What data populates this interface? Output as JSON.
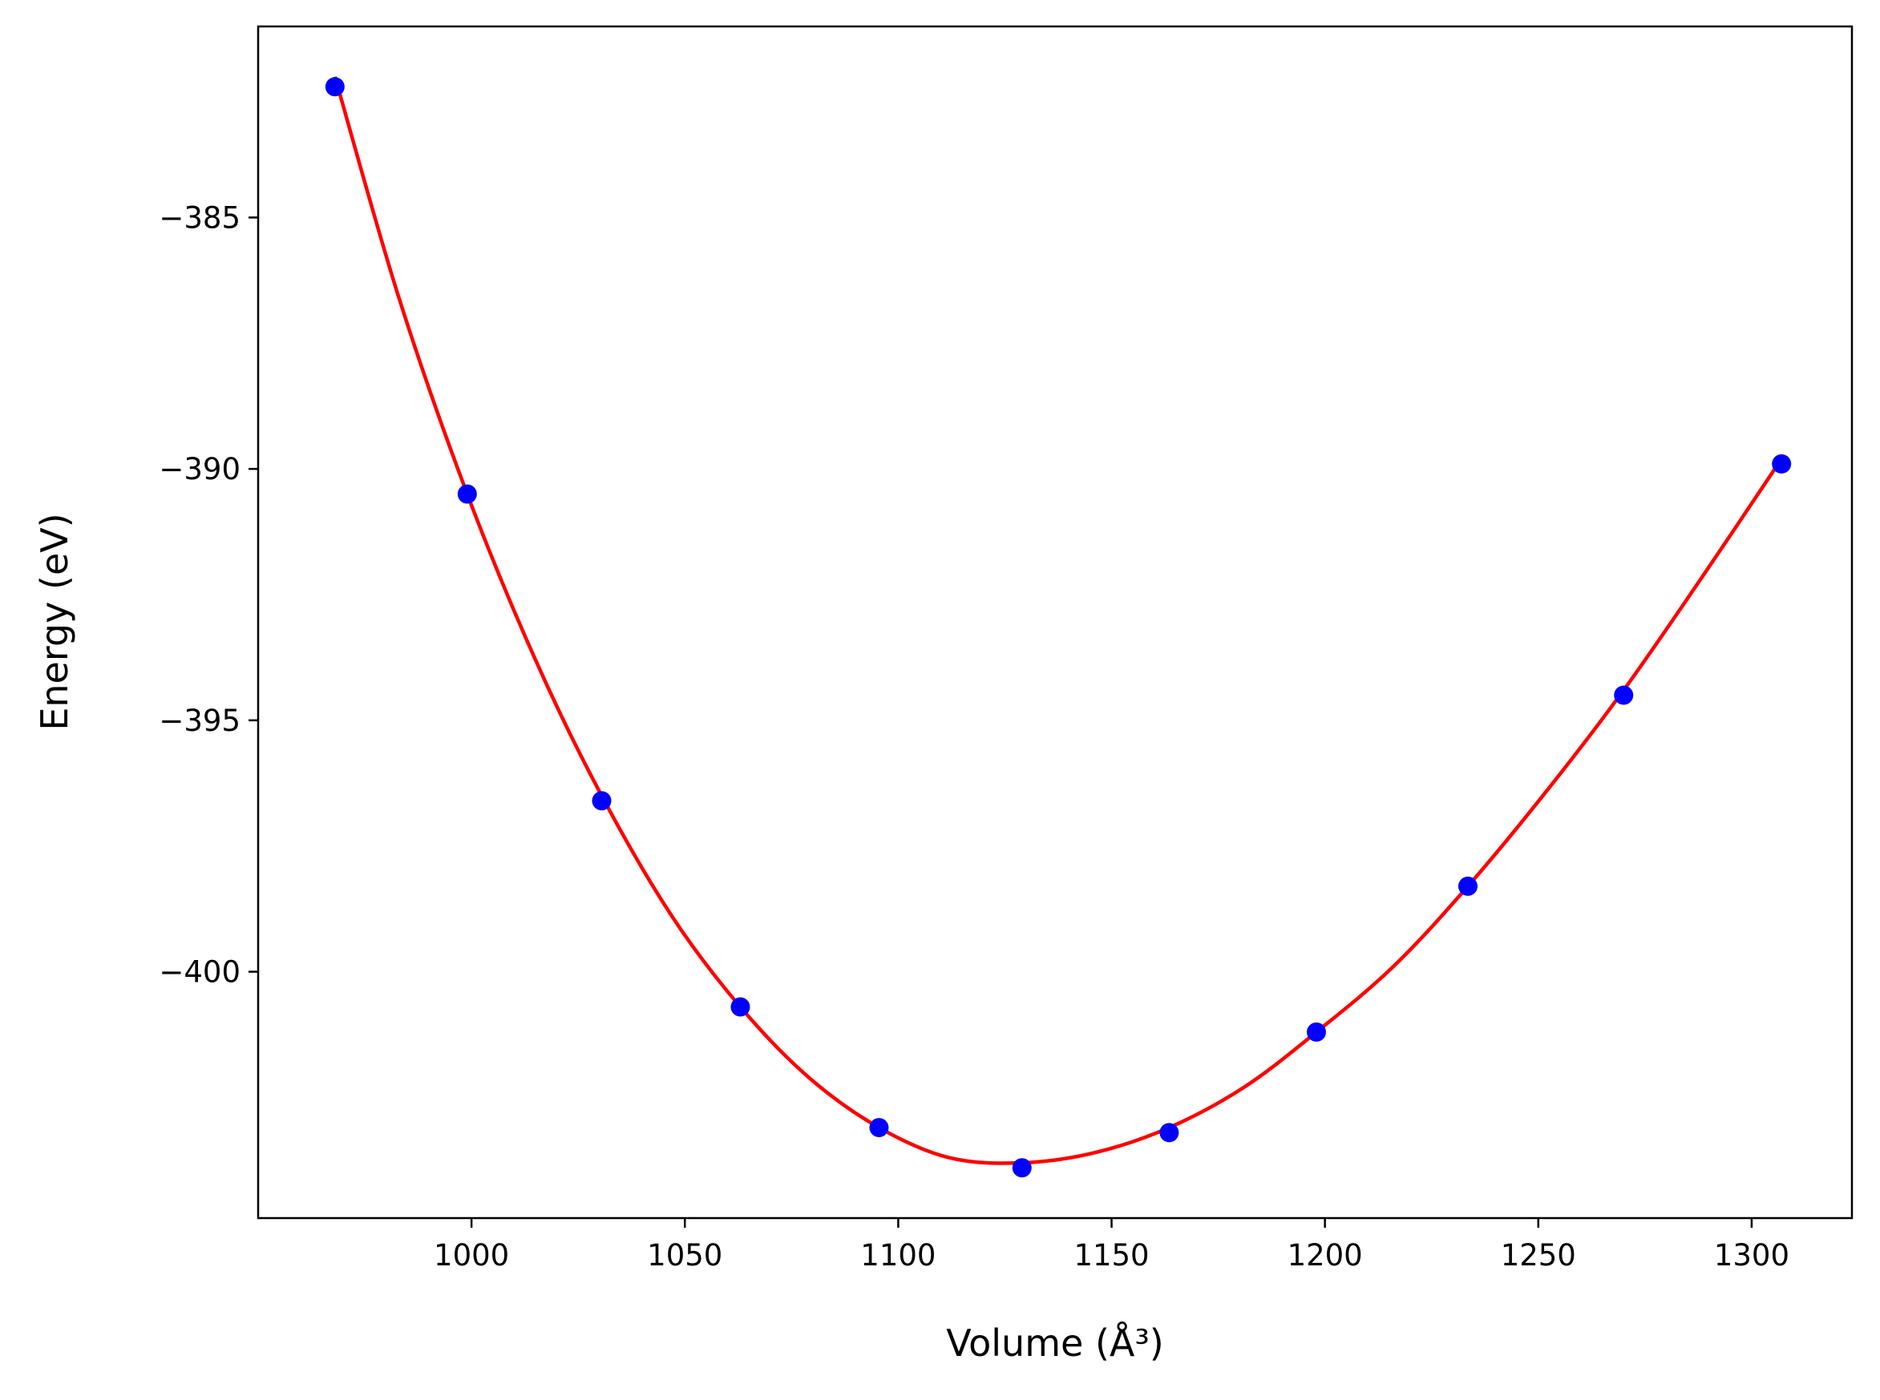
{
  "chart_data": {
    "type": "scatter",
    "xlabel": "Volume (Å³)",
    "ylabel": "Energy (eV)",
    "xlim": [
      950,
      1323.5
    ],
    "ylim": [
      -404.9,
      -381.2
    ],
    "x_ticks": [
      1000,
      1050,
      1100,
      1150,
      1200,
      1250,
      1300
    ],
    "y_ticks": [
      -385,
      -390,
      -395,
      -400
    ],
    "x_tick_labels": [
      "1000",
      "1050",
      "1100",
      "1150",
      "1200",
      "1250",
      "1300"
    ],
    "y_tick_labels": [
      "−385",
      "−390",
      "−395",
      "−400"
    ],
    "grid": false,
    "legend": "none",
    "series": [
      {
        "kind": "scatter",
        "color": "#0000ff",
        "x": [
          968.0,
          999.0,
          1030.5,
          1063.0,
          1095.5,
          1129.0,
          1163.5,
          1198.0,
          1233.5,
          1270.0,
          1307.0
        ],
        "y": [
          -382.4,
          -390.5,
          -396.6,
          -400.7,
          -403.1,
          -403.9,
          -403.2,
          -401.2,
          -398.3,
          -394.5,
          -389.9
        ]
      },
      {
        "kind": "line",
        "color": "#ff0000",
        "x": [
          968.0,
          983.0,
          999.0,
          1015.0,
          1030.5,
          1047.0,
          1063.0,
          1079.0,
          1095.5,
          1112.0,
          1129.0,
          1146.0,
          1163.5,
          1181.0,
          1198.0,
          1216.0,
          1233.5,
          1252.0,
          1270.0,
          1288.0,
          1307.0
        ],
        "y": [
          -382.2,
          -386.6,
          -390.5,
          -393.8,
          -396.5,
          -398.9,
          -400.7,
          -402.1,
          -403.1,
          -403.7,
          -403.8,
          -403.6,
          -403.1,
          -402.3,
          -401.2,
          -399.9,
          -398.3,
          -396.4,
          -394.4,
          -392.2,
          -389.8
        ]
      }
    ]
  }
}
